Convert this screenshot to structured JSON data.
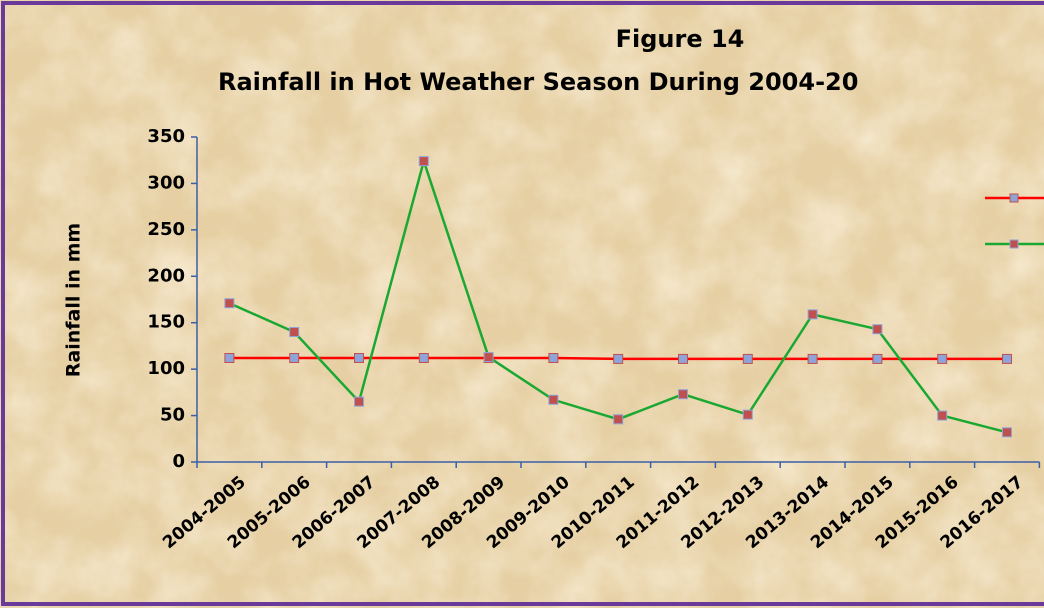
{
  "chart_data": {
    "type": "line",
    "title": "Figure 14",
    "subtitle": "Rainfall in Hot Weather Season During 2004-20",
    "y_label": "Rainfall in mm",
    "categories": [
      "2004-2005",
      "2005-2006",
      "2006-2007",
      "2007-2008",
      "2008-2009",
      "2009-2010",
      "2010-2011",
      "2011-2012",
      "2012-2013",
      "2013-2014",
      "2014-2015",
      "2015-2016",
      "2016-2017"
    ],
    "series": [
      {
        "color": "#ff0000",
        "marker_color": "#8ea4d8",
        "values": [
          112,
          112,
          112,
          112,
          112,
          112,
          111,
          111,
          111,
          111,
          111,
          111,
          111
        ]
      },
      {
        "color": "#1aa832",
        "marker_color": "#c0504d",
        "values": [
          171,
          140,
          65,
          324,
          113,
          67,
          46,
          73,
          51,
          159,
          143,
          50,
          32
        ]
      }
    ],
    "ylim": [
      0,
      350
    ],
    "yticks": [
      0,
      50,
      100,
      150,
      200,
      250,
      300,
      350
    ]
  }
}
